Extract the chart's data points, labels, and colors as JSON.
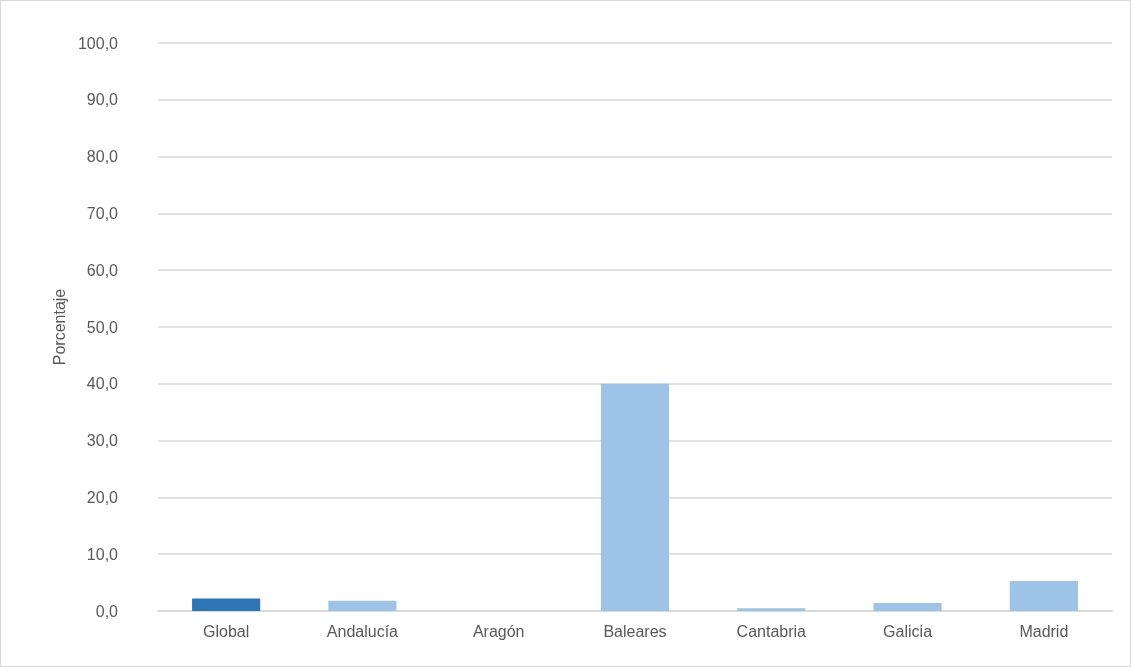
{
  "chart_data": {
    "type": "bar",
    "ylabel": "Porcentaje",
    "categories": [
      "Global",
      "Andalucía",
      "Aragón",
      "Baleares",
      "Cantabria",
      "Galicia",
      "Madrid"
    ],
    "values": [
      2.2,
      1.8,
      0,
      40.0,
      0.5,
      1.4,
      5.3
    ],
    "colors": [
      "#2e75b6",
      "#9dc3e6",
      "#9dc3e6",
      "#9dc3e6",
      "#9dc3e6",
      "#9dc3e6",
      "#9dc3e6"
    ],
    "ylim": [
      0,
      100
    ],
    "yticks": [
      {
        "value": 0,
        "label": "0,0"
      },
      {
        "value": 10,
        "label": "10,0"
      },
      {
        "value": 20,
        "label": "20,0"
      },
      {
        "value": 30,
        "label": "30,0"
      },
      {
        "value": 40,
        "label": "40,0"
      },
      {
        "value": 50,
        "label": "50,0"
      },
      {
        "value": 60,
        "label": "60,0"
      },
      {
        "value": 70,
        "label": "70,0"
      },
      {
        "value": 80,
        "label": "80,0"
      },
      {
        "value": 90,
        "label": "90,0"
      },
      {
        "value": 100,
        "label": "100,0"
      }
    ],
    "grid": true
  }
}
